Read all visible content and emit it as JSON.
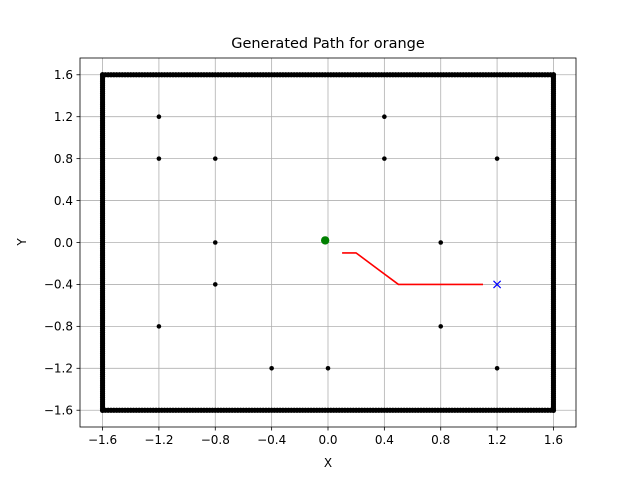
{
  "chart_data": {
    "type": "scatter",
    "title": "Generated Path for orange",
    "xlabel": "X",
    "ylabel": "Y",
    "xlim": [
      -1.76,
      1.76
    ],
    "ylim": [
      -1.76,
      1.76
    ],
    "xticks": [
      -1.6,
      -1.2,
      -0.8,
      -0.4,
      0.0,
      0.4,
      0.8,
      1.2,
      1.6
    ],
    "xtick_labels": [
      "−1.6",
      "−1.2",
      "−0.8",
      "−0.4",
      "0.0",
      "0.4",
      "0.8",
      "1.2",
      "1.6"
    ],
    "yticks": [
      -1.6,
      -1.2,
      -0.8,
      -0.4,
      0.0,
      0.4,
      0.8,
      1.2,
      1.6
    ],
    "ytick_labels": [
      "−1.6",
      "−1.2",
      "−0.8",
      "−0.4",
      "0.0",
      "0.4",
      "0.8",
      "1.2",
      "1.6"
    ],
    "grid": true,
    "boundary": {
      "color": "#000000",
      "x_min": -1.6,
      "x_max": 1.6,
      "y_min": -1.6,
      "y_max": 1.6
    },
    "obstacles": {
      "color": "#000000",
      "points": [
        [
          -1.2,
          1.2
        ],
        [
          0.4,
          1.2
        ],
        [
          -1.2,
          0.8
        ],
        [
          -0.8,
          0.8
        ],
        [
          0.4,
          0.8
        ],
        [
          1.2,
          0.8
        ],
        [
          -0.8,
          0.0
        ],
        [
          0.8,
          0.0
        ],
        [
          -0.8,
          -0.4
        ],
        [
          -1.2,
          -0.8
        ],
        [
          0.8,
          -0.8
        ],
        [
          -0.4,
          -1.2
        ],
        [
          0.0,
          -1.2
        ],
        [
          1.2,
          -1.2
        ]
      ]
    },
    "start": {
      "x": -0.02,
      "y": 0.02,
      "color": "#008000"
    },
    "goal": {
      "x": 1.2,
      "y": -0.4,
      "color": "#0000ff"
    },
    "path": {
      "color": "#ff0000",
      "points": [
        [
          0.1,
          -0.1
        ],
        [
          0.2,
          -0.1
        ],
        [
          0.5,
          -0.4
        ],
        [
          1.1,
          -0.4
        ]
      ]
    }
  }
}
